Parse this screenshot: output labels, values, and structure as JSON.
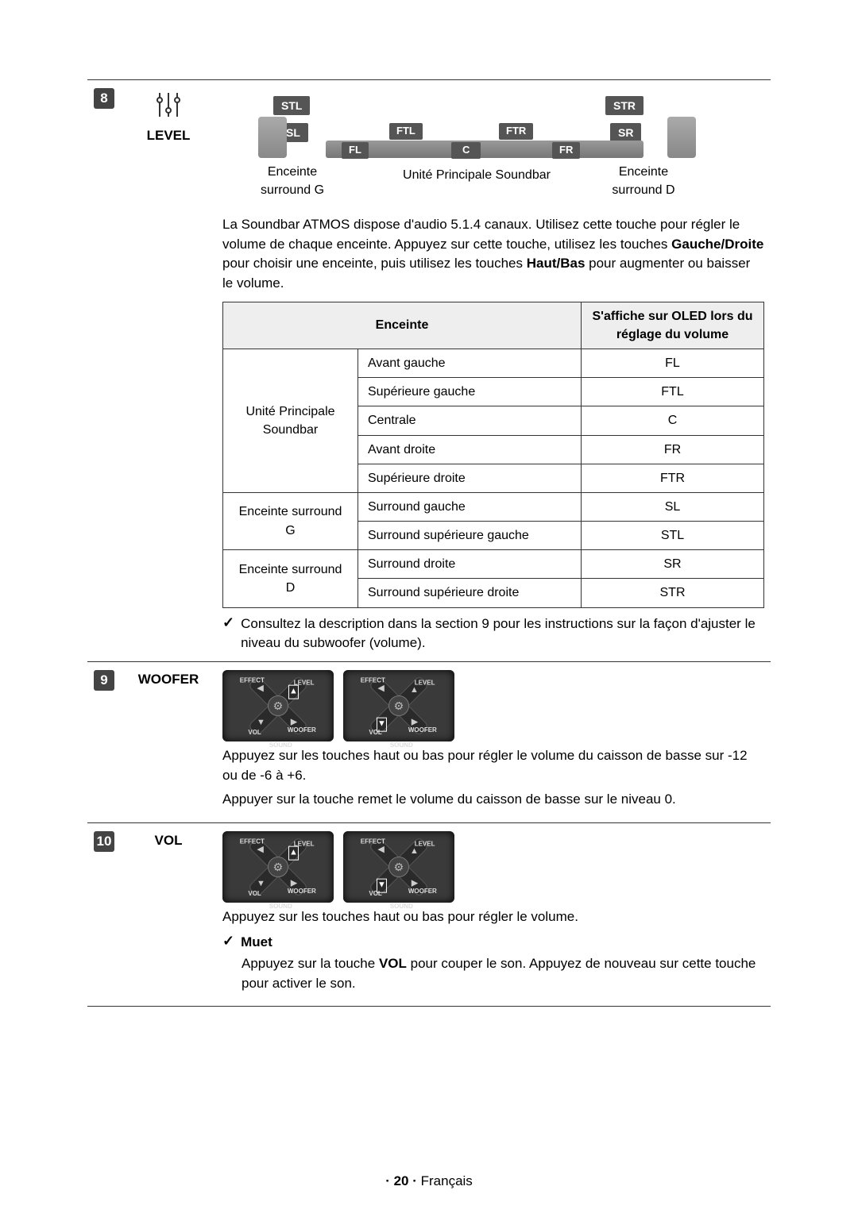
{
  "sections": {
    "level": {
      "num": "8",
      "label": "LEVEL",
      "diagram": {
        "stl": "STL",
        "str": "STR",
        "sl": "SL",
        "sr": "SR",
        "ftl": "FTL",
        "ftr": "FTR",
        "fl": "FL",
        "c": "C",
        "fr": "FR",
        "surround_g": "Enceinte\nsurround G",
        "soundbar_unit": "Unité Principale Soundbar",
        "surround_d": "Enceinte\nsurround D"
      },
      "intro_1": "La Soundbar ATMOS dispose d'audio 5.1.4 canaux. Utilisez cette touche pour régler le volume de chaque enceinte. Appuyez sur cette touche, utilisez les touches ",
      "intro_bold_1": "Gauche/Droite",
      "intro_2": " pour choisir une enceinte, puis utilisez les touches ",
      "intro_bold_2": "Haut/Bas",
      "intro_3": " pour augmenter ou baisser le volume.",
      "table": {
        "head_enceinte": "Enceinte",
        "head_oled": "S'affiche sur OLED lors du réglage du volume",
        "rows": [
          {
            "group": "Unité Principale Soundbar",
            "span": 5,
            "name": "Avant gauche",
            "oled": "FL"
          },
          {
            "name": "Supérieure gauche",
            "oled": "FTL"
          },
          {
            "name": "Centrale",
            "oled": "C"
          },
          {
            "name": "Avant droite",
            "oled": "FR"
          },
          {
            "name": "Supérieure droite",
            "oled": "FTR"
          },
          {
            "group": "Enceinte surround G",
            "span": 2,
            "name": "Surround gauche",
            "oled": "SL"
          },
          {
            "name": "Surround supérieure gauche",
            "oled": "STL"
          },
          {
            "group": "Enceinte surround D",
            "span": 2,
            "name": "Surround droite",
            "oled": "SR"
          },
          {
            "name": "Surround supérieure droite",
            "oled": "STR"
          }
        ]
      },
      "note": "Consultez la description dans la section 9 pour les instructions sur la façon d'ajuster le niveau du subwoofer (volume)."
    },
    "woofer": {
      "num": "9",
      "label": "WOOFER",
      "text1": "Appuyez sur les touches haut ou bas pour régler le volume du caisson de basse sur -12 ou de -6 à +6.",
      "text2": "Appuyer sur la touche remet le volume du caisson de basse sur le niveau 0.",
      "dpad_labels": {
        "level": "LEVEL",
        "effect": "EFFECT",
        "woofer": "WOOFER",
        "vol": "VOL",
        "sound": "SOUND"
      }
    },
    "vol": {
      "num": "10",
      "label": "VOL",
      "text1": "Appuyez sur les touches haut ou bas pour régler le volume.",
      "muet_label": "Muet",
      "muet_text_1": "Appuyez sur la touche ",
      "muet_bold": "VOL",
      "muet_text_2": " pour couper le son. Appuyez de nouveau sur cette touche pour activer le son."
    }
  },
  "footer": {
    "page": "· 20 ·",
    "lang": "Français"
  },
  "colors": {
    "badge_bg": "#444444",
    "speaker_bg": "#555555",
    "table_header_bg": "#eeeeee",
    "border": "#333333",
    "dpad_bg": "#3a3a3a"
  }
}
